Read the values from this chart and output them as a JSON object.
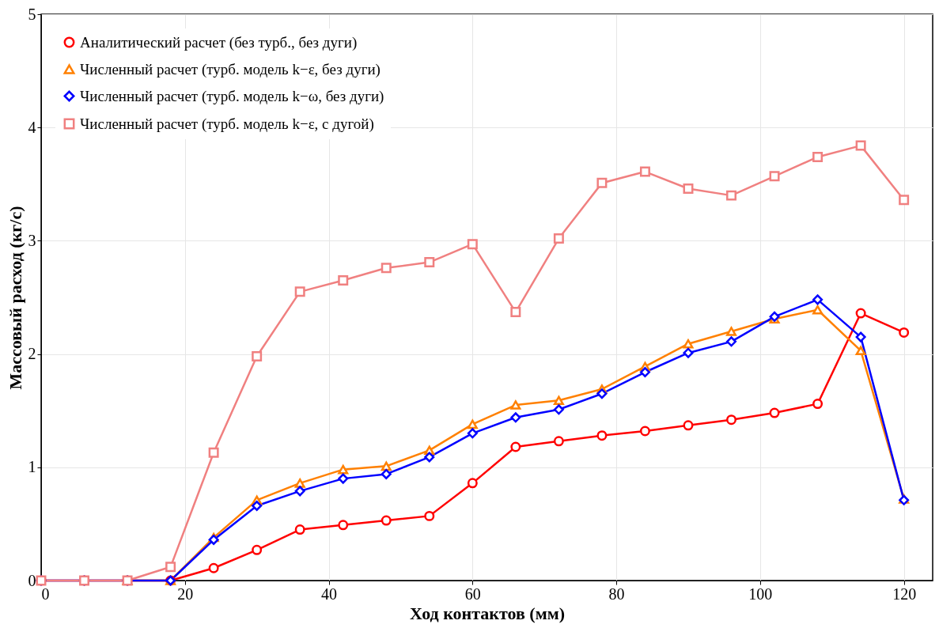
{
  "chart_data": {
    "type": "line",
    "xlabel": "Ход контактов (мм)",
    "ylabel": "Массовый расход (кг/с)",
    "x": [
      0,
      6,
      12,
      18,
      24,
      30,
      36,
      42,
      48,
      54,
      60,
      66,
      72,
      78,
      84,
      90,
      96,
      102,
      108,
      114,
      120
    ],
    "xlim": [
      0,
      124
    ],
    "xticks": [
      0,
      20,
      40,
      60,
      80,
      100,
      120
    ],
    "ylim": [
      0,
      5
    ],
    "yticks": [
      0,
      1,
      2,
      3,
      4,
      5
    ],
    "grid": true,
    "legend": "top left",
    "line_style": "solid",
    "series": [
      {
        "name": "Аналитический расчет (без турб., без дуги)",
        "color": "#ff0000",
        "marker": "circle",
        "values": [
          0,
          0,
          0,
          0,
          0.11,
          0.27,
          0.45,
          0.49,
          0.53,
          0.57,
          0.86,
          1.18,
          1.23,
          1.28,
          1.32,
          1.37,
          1.42,
          1.48,
          1.56,
          2.36,
          2.19
        ]
      },
      {
        "name": "Численный расчет (турб. модель k−ε, без дуги)",
        "color": "#ff8000",
        "marker": "triangle",
        "values": [
          null,
          null,
          0,
          0,
          0.38,
          0.71,
          0.86,
          0.98,
          1.01,
          1.15,
          1.38,
          1.55,
          1.59,
          1.69,
          1.89,
          2.09,
          2.2,
          2.31,
          2.39,
          2.03,
          0.72
        ]
      },
      {
        "name": "Численный расчет (турб. модель k−ω, без дуги)",
        "color": "#0000ff",
        "marker": "diamond",
        "values": [
          0,
          0,
          0,
          0,
          0.36,
          0.66,
          0.79,
          0.9,
          0.94,
          1.09,
          1.3,
          1.44,
          1.51,
          1.65,
          1.84,
          2.01,
          2.11,
          2.33,
          2.48,
          2.15,
          0.71
        ]
      },
      {
        "name": "Численный расчет (турб. модель k−ε, с дугой)",
        "color": "#f08080",
        "marker": "square",
        "values": [
          0,
          0,
          0,
          0.12,
          1.13,
          1.98,
          2.55,
          2.65,
          2.76,
          2.81,
          2.97,
          2.37,
          3.02,
          3.51,
          3.61,
          3.46,
          3.4,
          3.57,
          3.74,
          3.84,
          3.36
        ]
      }
    ]
  }
}
